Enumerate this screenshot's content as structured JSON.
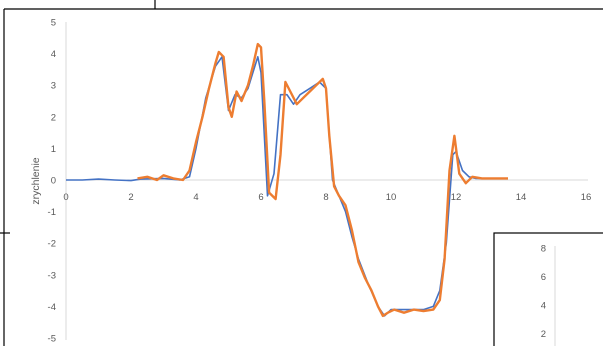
{
  "chart_data": [
    {
      "type": "line",
      "ylabel": "zrychlenie",
      "xlim": [
        0,
        16
      ],
      "ylim": [
        -5,
        5
      ],
      "x_ticks": [
        0,
        2,
        4,
        6,
        8,
        10,
        12,
        14,
        16
      ],
      "y_ticks": [
        5,
        4,
        3,
        2,
        1,
        0,
        -1,
        -2,
        -3,
        -4,
        -5
      ],
      "grid": false,
      "series": [
        {
          "color": "#4472C4",
          "x": [
            0,
            0.5,
            1,
            1.5,
            2,
            2.3,
            3,
            3.5,
            3.8,
            4,
            4.3,
            4.6,
            4.8,
            5,
            5.2,
            5.4,
            5.6,
            5.9,
            6.0,
            6.2,
            6.4,
            6.6,
            6.8,
            7.0,
            7.2,
            7.5,
            7.8,
            8.0,
            8.2,
            8.4,
            8.6,
            8.8,
            9.0,
            9.3,
            9.6,
            9.8,
            10.0,
            10.3,
            10.6,
            11.0,
            11.3,
            11.5,
            11.7,
            11.9,
            12.0,
            12.2,
            12.4,
            12.6,
            13.0,
            13.6
          ],
          "y": [
            0,
            0,
            0.03,
            0,
            -0.02,
            0.03,
            0.05,
            0,
            0.1,
            1.0,
            2.6,
            3.6,
            3.9,
            2.2,
            2.7,
            2.6,
            2.9,
            3.9,
            3.4,
            -0.5,
            0.2,
            2.7,
            2.7,
            2.4,
            2.7,
            2.9,
            3.1,
            2.9,
            0,
            -0.5,
            -1.0,
            -1.8,
            -2.5,
            -3.3,
            -4.0,
            -4.3,
            -4.1,
            -4.1,
            -4.1,
            -4.1,
            -4.0,
            -3.5,
            -2.0,
            0.8,
            0.9,
            0.3,
            0.1,
            0.05,
            0.05,
            0.05
          ]
        },
        {
          "color": "#ED7D31",
          "x": [
            2.2,
            2.5,
            2.8,
            3.0,
            3.3,
            3.6,
            3.8,
            4.0,
            4.2,
            4.4,
            4.6,
            4.7,
            4.85,
            5.0,
            5.1,
            5.25,
            5.4,
            5.6,
            5.75,
            5.9,
            6.0,
            6.1,
            6.25,
            6.45,
            6.6,
            6.75,
            6.9,
            7.1,
            7.3,
            7.5,
            7.7,
            7.9,
            8.0,
            8.1,
            8.25,
            8.4,
            8.6,
            8.8,
            9.0,
            9.2,
            9.4,
            9.6,
            9.75,
            9.9,
            10.1,
            10.4,
            10.7,
            11.0,
            11.3,
            11.5,
            11.65,
            11.8,
            11.95,
            12.1,
            12.3,
            12.5,
            12.8,
            13.2,
            13.6
          ],
          "y": [
            0.05,
            0.1,
            0.0,
            0.15,
            0.05,
            0.0,
            0.3,
            1.2,
            2.0,
            2.9,
            3.7,
            4.05,
            3.9,
            2.3,
            2.0,
            2.8,
            2.5,
            3.0,
            3.6,
            4.3,
            4.2,
            2.5,
            -0.4,
            -0.6,
            0.8,
            3.1,
            2.8,
            2.4,
            2.6,
            2.8,
            3.0,
            3.2,
            2.9,
            1.4,
            -0.2,
            -0.5,
            -0.8,
            -1.6,
            -2.6,
            -3.1,
            -3.5,
            -4.0,
            -4.3,
            -4.2,
            -4.1,
            -4.2,
            -4.1,
            -4.15,
            -4.1,
            -3.8,
            -2.5,
            0.3,
            1.4,
            0.2,
            -0.1,
            0.1,
            0.05,
            0.05,
            0.05
          ]
        }
      ]
    },
    {
      "type": "line",
      "y_ticks": [
        8,
        6,
        4,
        2
      ],
      "series": []
    }
  ]
}
